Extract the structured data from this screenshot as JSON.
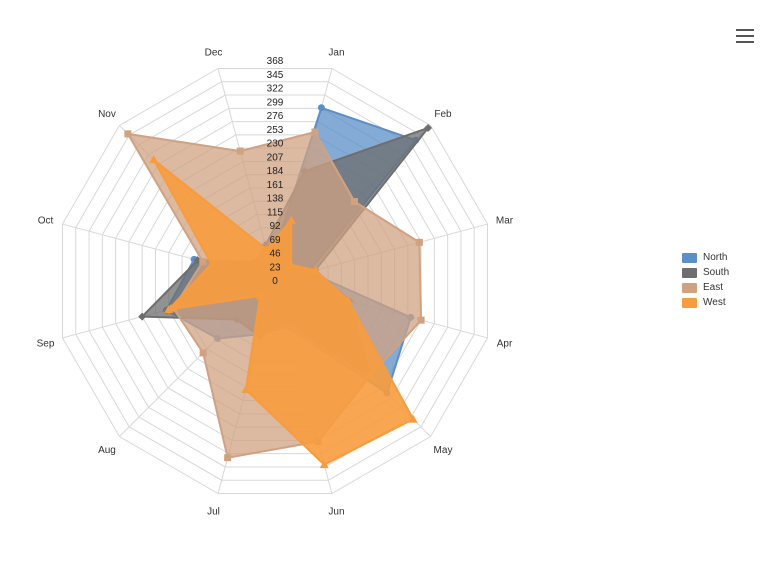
{
  "chart_data": {
    "type": "radar",
    "categories": [
      "Jan",
      "Feb",
      "Mar",
      "Apr",
      "May",
      "Jun",
      "Jul",
      "Aug",
      "Sep",
      "Oct",
      "Nov",
      "Dec"
    ],
    "radial_ticks": [
      "0",
      "23",
      "46",
      "69",
      "92",
      "115",
      "138",
      "161",
      "184",
      "207",
      "230",
      "253",
      "276",
      "299",
      "322",
      "345",
      "368"
    ],
    "ylim": [
      0,
      368
    ],
    "grid": true,
    "legend_position": "right",
    "series": [
      {
        "name": "North",
        "color": "#5b8fc7",
        "values": [
          300,
          333,
          58,
          235,
          265,
          79,
          92,
          136,
          188,
          140,
          40,
          29
        ]
      },
      {
        "name": "South",
        "color": "#6e6e6e",
        "values": [
          190,
          362,
          70,
          129,
          225,
          70,
          96,
          91,
          230,
          134,
          45,
          62
        ]
      },
      {
        "name": "East",
        "color": "#d0a282",
        "values": [
          258,
          188,
          250,
          253,
          225,
          278,
          306,
          170,
          176,
          125,
          348,
          225
        ]
      },
      {
        "name": "West",
        "color": "#f79c3e",
        "values": [
          105,
          38,
          70,
          127,
          327,
          318,
          188,
          35,
          184,
          110,
          287,
          55
        ]
      }
    ]
  },
  "legend": {
    "items": [
      "North",
      "South",
      "East",
      "West"
    ]
  },
  "menu": {
    "icon": "hamburger-menu-icon"
  }
}
